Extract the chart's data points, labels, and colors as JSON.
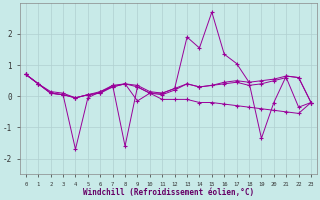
{
  "xlabel": "Windchill (Refroidissement éolien,°C)",
  "background_color": "#c8eae8",
  "line_color": "#990099",
  "grid_color": "#b0d0d0",
  "ylim": [
    -2.5,
    3.0
  ],
  "xlim": [
    -0.5,
    23.5
  ],
  "x": [
    0,
    1,
    2,
    3,
    4,
    5,
    6,
    7,
    8,
    9,
    10,
    11,
    12,
    13,
    14,
    15,
    16,
    17,
    18,
    19,
    20,
    21,
    22,
    23
  ],
  "series": [
    [
      0.7,
      0.4,
      0.1,
      0.05,
      -0.05,
      0.05,
      0.1,
      0.35,
      0.4,
      0.35,
      0.15,
      0.1,
      0.25,
      0.4,
      0.3,
      0.35,
      0.45,
      0.5,
      0.45,
      0.5,
      0.55,
      0.65,
      0.6,
      -0.2
    ],
    [
      0.7,
      0.4,
      0.15,
      0.1,
      -0.05,
      0.05,
      0.15,
      0.3,
      0.4,
      0.3,
      0.1,
      0.05,
      0.2,
      0.4,
      0.3,
      0.35,
      0.4,
      0.45,
      0.35,
      0.4,
      0.5,
      0.6,
      -0.35,
      -0.2
    ],
    [
      0.7,
      0.4,
      0.1,
      0.05,
      -1.7,
      -0.05,
      0.15,
      0.35,
      -1.6,
      0.3,
      0.1,
      0.1,
      0.25,
      1.9,
      1.55,
      2.7,
      1.35,
      1.05,
      0.45,
      -1.35,
      -0.2,
      0.65,
      0.6,
      -0.2
    ],
    [
      0.7,
      0.4,
      0.1,
      0.05,
      -0.05,
      0.05,
      0.1,
      0.3,
      0.4,
      -0.15,
      0.1,
      -0.1,
      -0.1,
      -0.1,
      -0.2,
      -0.2,
      -0.25,
      -0.3,
      -0.35,
      -0.4,
      -0.45,
      -0.5,
      -0.55,
      -0.2
    ]
  ]
}
